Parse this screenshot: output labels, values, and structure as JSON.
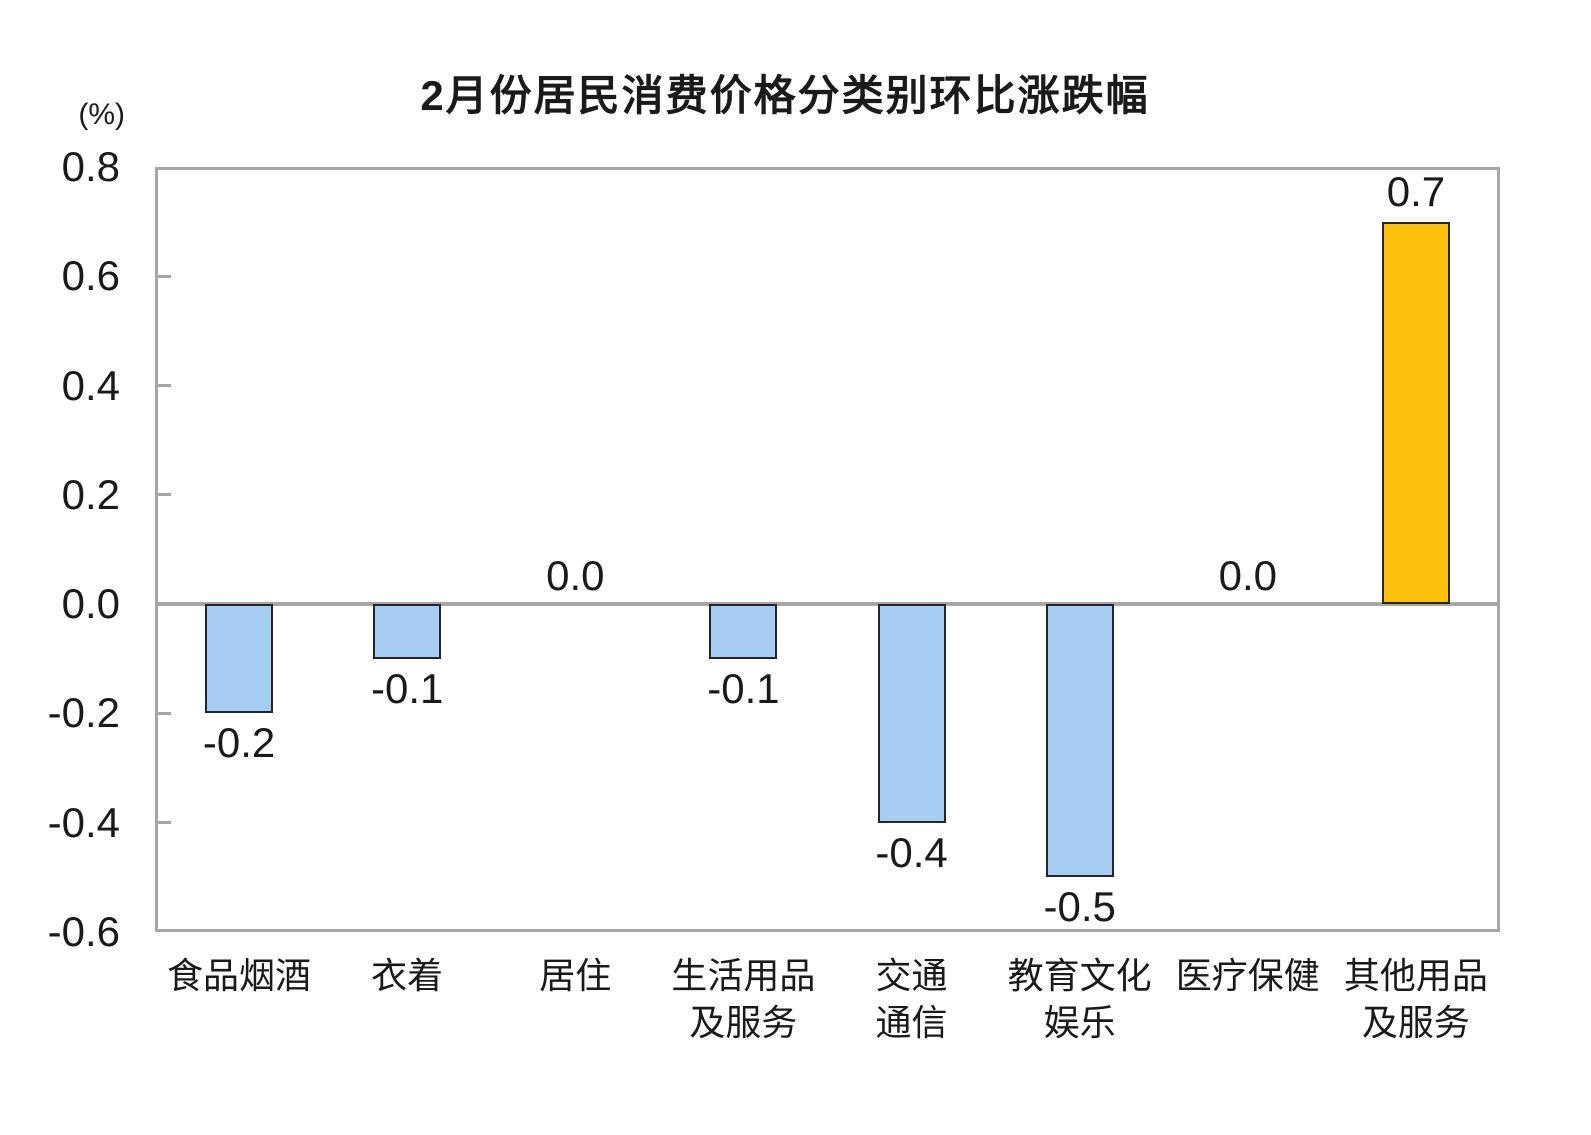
{
  "chart_data": {
    "type": "bar",
    "title": "2月份居民消费价格分类别环比涨跌幅",
    "unit_label": "(%)",
    "xlabel": "",
    "ylabel": "(%)",
    "ylim": [
      -0.6,
      0.8
    ],
    "grid": false,
    "legend": false,
    "y_ticks": [
      {
        "value": 0.8,
        "label": "0.8"
      },
      {
        "value": 0.6,
        "label": "0.6"
      },
      {
        "value": 0.4,
        "label": "0.4"
      },
      {
        "value": 0.2,
        "label": "0.2"
      },
      {
        "value": 0.0,
        "label": "0.0"
      },
      {
        "value": -0.2,
        "label": "-0.2"
      },
      {
        "value": -0.4,
        "label": "-0.4"
      },
      {
        "value": -0.6,
        "label": "-0.6"
      }
    ],
    "categories": [
      {
        "name": "食品烟酒",
        "label_lines": [
          "食品烟酒"
        ],
        "value": -0.2,
        "value_label": "-0.2"
      },
      {
        "name": "衣着",
        "label_lines": [
          "衣着"
        ],
        "value": -0.1,
        "value_label": "-0.1"
      },
      {
        "name": "居住",
        "label_lines": [
          "居住"
        ],
        "value": 0.0,
        "value_label": "0.0"
      },
      {
        "name": "生活用品及服务",
        "label_lines": [
          "生活用品",
          "及服务"
        ],
        "value": -0.1,
        "value_label": "-0.1"
      },
      {
        "name": "交通通信",
        "label_lines": [
          "交通",
          "通信"
        ],
        "value": -0.4,
        "value_label": "-0.4"
      },
      {
        "name": "教育文化娱乐",
        "label_lines": [
          "教育文化",
          "娱乐"
        ],
        "value": -0.5,
        "value_label": "-0.5"
      },
      {
        "name": "医疗保健",
        "label_lines": [
          "医疗保健"
        ],
        "value": 0.0,
        "value_label": "0.0"
      },
      {
        "name": "其他用品及服务",
        "label_lines": [
          "其他用品",
          "及服务"
        ],
        "value": 0.7,
        "value_label": "0.7"
      }
    ],
    "colors": {
      "bar_negative_fill": "#a5cdf2",
      "bar_positive_fill": "#fcc00d",
      "bar_border": "#262626",
      "axis_frame": "#a6a6a6",
      "zero_line": "#a6a6a6",
      "text": "#1a1a1a"
    }
  }
}
